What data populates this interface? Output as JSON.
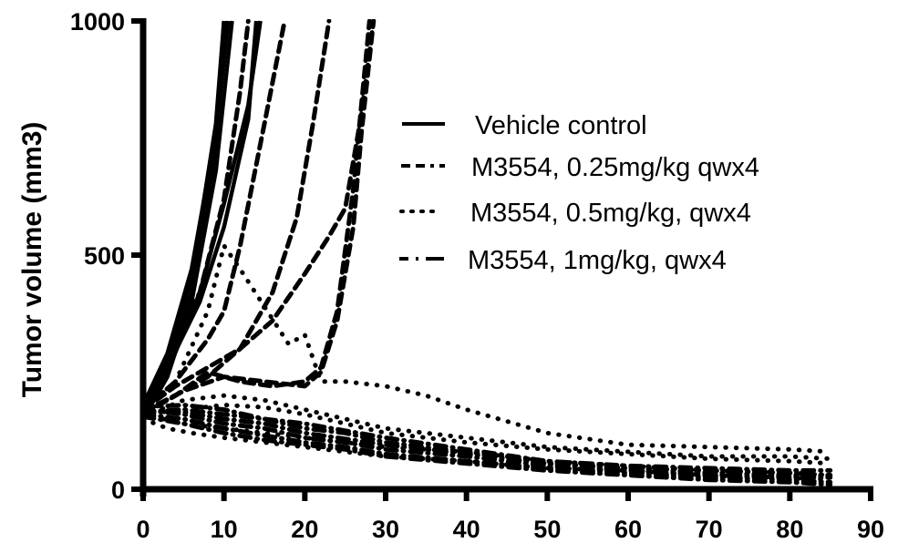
{
  "chart_data": {
    "type": "line",
    "title": "",
    "xlabel": "",
    "ylabel": "Tumor volume (mm3)",
    "xlim": [
      0,
      90
    ],
    "ylim": [
      0,
      1000
    ],
    "xticks": [
      0,
      10,
      20,
      30,
      40,
      50,
      60,
      70,
      80,
      90
    ],
    "yticks": [
      0,
      500,
      1000
    ],
    "grid": false,
    "legend_position": "upper right (inside plot)",
    "legend": [
      {
        "label": "Vehicle control",
        "style": "solid"
      },
      {
        "label": "M3554, 0.25mg/kg qwx4",
        "style": "dashed"
      },
      {
        "label": "M3554, 0.5mg/kg, qwx4",
        "style": "dotted"
      },
      {
        "label": "M3554, 1mg/kg, qwx4",
        "style": "dash-dot"
      }
    ],
    "series": [
      {
        "name": "Vehicle control",
        "style": "solid",
        "x": [
          0,
          3,
          6,
          9,
          10
        ],
        "values": [
          170,
          280,
          450,
          780,
          1000
        ]
      },
      {
        "name": "Vehicle control",
        "style": "solid",
        "x": [
          0,
          3,
          6,
          9,
          10
        ],
        "values": [
          160,
          260,
          420,
          730,
          1000
        ]
      },
      {
        "name": "Vehicle control",
        "style": "solid",
        "x": [
          0,
          3,
          6,
          9,
          10.5
        ],
        "values": [
          180,
          290,
          470,
          760,
          1000
        ]
      },
      {
        "name": "Vehicle control",
        "style": "solid",
        "x": [
          0,
          3,
          6,
          9,
          11
        ],
        "values": [
          150,
          240,
          400,
          680,
          1000
        ]
      },
      {
        "name": "Vehicle control",
        "style": "solid",
        "x": [
          0,
          3,
          7,
          10,
          13,
          14.5
        ],
        "values": [
          165,
          250,
          420,
          610,
          820,
          1000
        ]
      },
      {
        "name": "Vehicle control",
        "style": "solid",
        "x": [
          0,
          3,
          7,
          10,
          13,
          14
        ],
        "values": [
          175,
          260,
          400,
          560,
          790,
          1000
        ]
      },
      {
        "name": "0.25mg/kg",
        "style": "dashed",
        "x": [
          0,
          3,
          7,
          10,
          12,
          13
        ],
        "values": [
          160,
          280,
          420,
          620,
          850,
          1000
        ]
      },
      {
        "name": "0.25mg/kg",
        "style": "dashed",
        "x": [
          0,
          4,
          8,
          10,
          12,
          15,
          17.5
        ],
        "values": [
          170,
          230,
          320,
          380,
          520,
          780,
          1000
        ]
      },
      {
        "name": "0.25mg/kg",
        "style": "dashed",
        "x": [
          0,
          4,
          8,
          12,
          16,
          19,
          21,
          23
        ],
        "values": [
          165,
          200,
          240,
          300,
          420,
          580,
          780,
          1000
        ]
      },
      {
        "name": "0.25mg/kg",
        "style": "dashed",
        "x": [
          0,
          4,
          8,
          12,
          16,
          20,
          23,
          25,
          27,
          28.5
        ],
        "values": [
          170,
          220,
          260,
          300,
          360,
          460,
          540,
          600,
          800,
          1000
        ]
      },
      {
        "name": "0.25mg/kg",
        "style": "dashed",
        "x": [
          0,
          4,
          8,
          12,
          16,
          20,
          22,
          24,
          26,
          28
        ],
        "values": [
          160,
          200,
          250,
          230,
          220,
          230,
          260,
          380,
          640,
          1000
        ]
      },
      {
        "name": "0.25mg/kg",
        "style": "dashed",
        "x": [
          0,
          5,
          10,
          15,
          20,
          22,
          24,
          26,
          27,
          28.5
        ],
        "values": [
          165,
          210,
          240,
          230,
          220,
          250,
          360,
          560,
          760,
          1000
        ]
      },
      {
        "name": "0.5mg/kg",
        "style": "dotted",
        "x": [
          0,
          4,
          8,
          10,
          12,
          15,
          18,
          20,
          22,
          25,
          30,
          35,
          40,
          50,
          60,
          70,
          80,
          85
        ],
        "values": [
          170,
          230,
          380,
          520,
          470,
          390,
          310,
          330,
          230,
          230,
          220,
          200,
          170,
          120,
          95,
          90,
          85,
          80
        ]
      },
      {
        "name": "0.5mg/kg",
        "style": "dotted",
        "x": [
          0,
          3,
          6,
          10,
          15,
          20,
          25,
          30,
          35,
          40,
          50,
          60,
          70,
          80,
          85
        ],
        "values": [
          150,
          130,
          120,
          110,
          100,
          90,
          80,
          70,
          65,
          60,
          45,
          40,
          30,
          25,
          20
        ]
      },
      {
        "name": "0.5mg/kg",
        "style": "dotted",
        "x": [
          0,
          5,
          10,
          15,
          20,
          25,
          30,
          40,
          50,
          60,
          70,
          80,
          85
        ],
        "values": [
          160,
          170,
          180,
          175,
          160,
          140,
          120,
          100,
          85,
          75,
          65,
          60,
          55
        ]
      },
      {
        "name": "0.5mg/kg",
        "style": "dotted",
        "x": [
          0,
          5,
          10,
          15,
          20,
          25,
          30,
          40,
          50,
          60,
          70,
          80,
          85
        ],
        "values": [
          155,
          190,
          200,
          190,
          170,
          150,
          130,
          110,
          90,
          80,
          70,
          70,
          65
        ]
      },
      {
        "name": "0.5mg/kg",
        "style": "dotted",
        "x": [
          0,
          5,
          10,
          15,
          20,
          30,
          40,
          50,
          60,
          70,
          80,
          85
        ],
        "values": [
          160,
          140,
          130,
          120,
          110,
          90,
          80,
          60,
          50,
          40,
          35,
          30
        ]
      },
      {
        "name": "1mg/kg",
        "style": "dashdot",
        "x": [
          0,
          5,
          10,
          15,
          20,
          25,
          30,
          40,
          50,
          60,
          70,
          80,
          85
        ],
        "values": [
          165,
          170,
          160,
          150,
          130,
          120,
          100,
          80,
          55,
          45,
          35,
          30,
          30
        ]
      },
      {
        "name": "1mg/kg",
        "style": "dashdot",
        "x": [
          0,
          5,
          10,
          15,
          20,
          25,
          30,
          40,
          50,
          60,
          70,
          80,
          85
        ],
        "values": [
          170,
          160,
          140,
          130,
          110,
          100,
          85,
          70,
          50,
          40,
          30,
          25,
          25
        ]
      },
      {
        "name": "1mg/kg",
        "style": "dashdot",
        "x": [
          0,
          5,
          10,
          15,
          20,
          25,
          30,
          40,
          50,
          60,
          70,
          80,
          85
        ],
        "values": [
          160,
          150,
          130,
          115,
          100,
          90,
          75,
          60,
          45,
          35,
          25,
          20,
          15
        ]
      },
      {
        "name": "1mg/kg",
        "style": "dashdot",
        "x": [
          0,
          5,
          10,
          15,
          20,
          25,
          30,
          40,
          50,
          60,
          70,
          80,
          85
        ],
        "values": [
          175,
          180,
          170,
          150,
          140,
          125,
          110,
          85,
          60,
          50,
          45,
          40,
          40
        ]
      },
      {
        "name": "1mg/kg",
        "style": "dashdot",
        "x": [
          0,
          5,
          10,
          15,
          20,
          25,
          30,
          40,
          50,
          60,
          70,
          80,
          85
        ],
        "values": [
          155,
          140,
          120,
          105,
          95,
          85,
          70,
          55,
          40,
          30,
          20,
          15,
          10
        ]
      },
      {
        "name": "1mg/kg",
        "style": "dashdot",
        "x": [
          0,
          5,
          10,
          15,
          20,
          30,
          40,
          50,
          60,
          70,
          80,
          85
        ],
        "values": [
          165,
          165,
          150,
          140,
          120,
          95,
          75,
          55,
          45,
          40,
          35,
          30
        ]
      }
    ]
  },
  "axes": {
    "y_title": "Tumor volume (mm3)",
    "y_ticks": [
      "0",
      "500",
      "1000"
    ],
    "x_ticks": [
      "0",
      "10",
      "20",
      "30",
      "40",
      "50",
      "60",
      "70",
      "80",
      "90"
    ]
  },
  "legend": {
    "items": [
      {
        "label": "Vehicle control"
      },
      {
        "label": "M3554, 0.25mg/kg qwx4"
      },
      {
        "label": "M3554, 0.5mg/kg, qwx4"
      },
      {
        "label": "M3554, 1mg/kg, qwx4"
      }
    ]
  }
}
